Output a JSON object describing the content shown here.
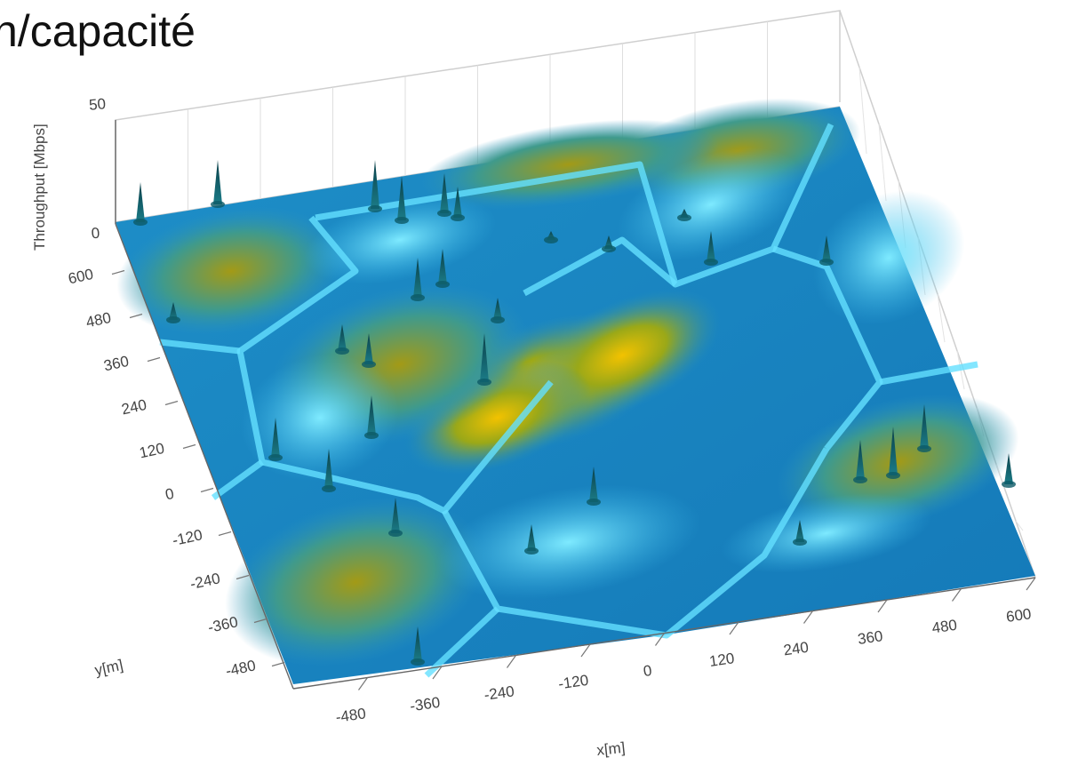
{
  "slide": {
    "title": "n/capacité"
  },
  "colors": {
    "ridge": "#e0b400",
    "valley": "#1e88c8",
    "edge": "#64e0ff",
    "spike": "#0d5a66"
  },
  "chart_data": {
    "type": "surface",
    "zlabel": "Throughput [Mbps]",
    "xlabel": "x[m]",
    "ylabel": "y[m]",
    "zlim": [
      0,
      50
    ],
    "z_ticks": [
      "0",
      "50"
    ],
    "x_ticks": [
      "-480",
      "-360",
      "-240",
      "-120",
      "0",
      "120",
      "240",
      "360",
      "480",
      "600"
    ],
    "y_ticks": [
      "600",
      "480",
      "360",
      "240",
      "120",
      "0",
      "-120",
      "-240",
      "-360",
      "-480"
    ],
    "xlim": [
      -600,
      600
    ],
    "ylim": [
      -600,
      600
    ],
    "colormap": "parula",
    "grid": true,
    "description_values": {
      "cells": "hexagonal",
      "base_throughput_mbps_range": [
        0,
        18
      ],
      "spike_throughput_mbps_range": [
        10,
        40
      ]
    }
  }
}
